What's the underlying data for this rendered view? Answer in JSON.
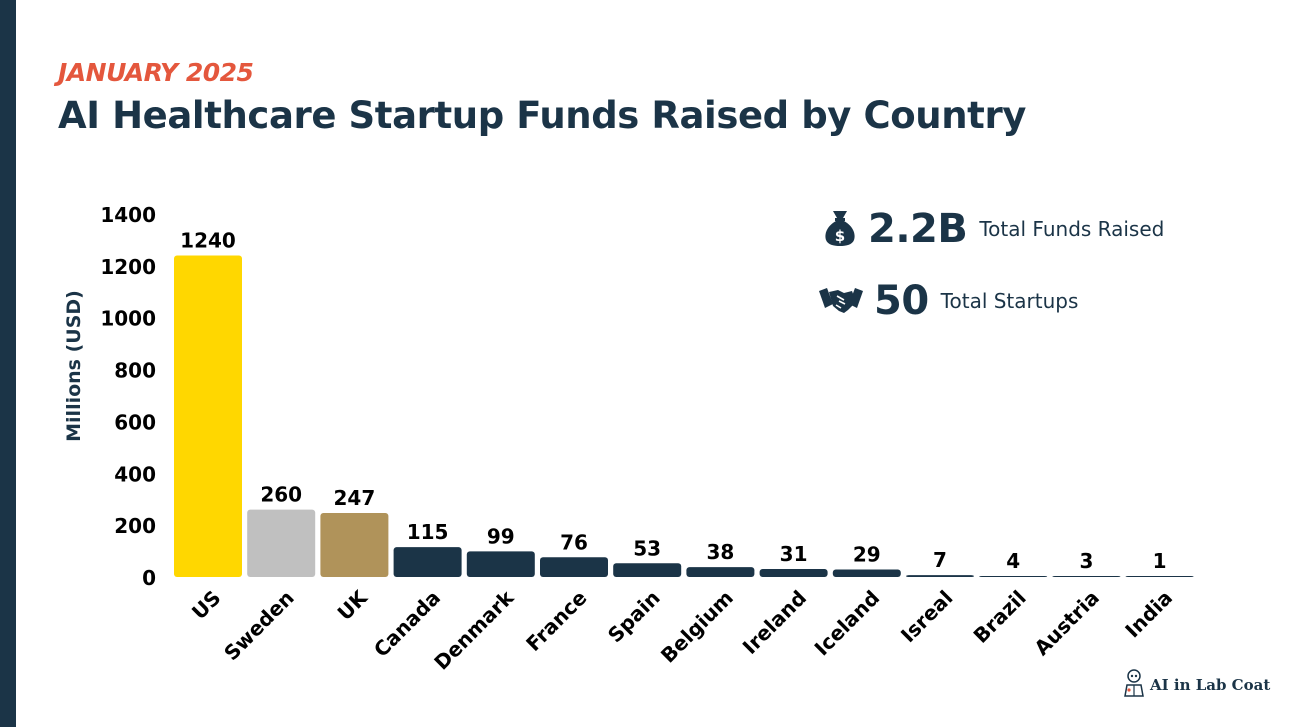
{
  "header": {
    "subtitle": "JANUARY 2025",
    "title": "AI Healthcare Startup Funds Raised by Country"
  },
  "stats": {
    "funds_value": "2.2B",
    "funds_label": "Total Funds Raised",
    "startups_value": "50",
    "startups_label": "Total Startups"
  },
  "icons": {
    "funds": "money-bag-icon",
    "startups": "handshake-icon",
    "brand": "robot-logo-icon"
  },
  "brand": {
    "name": "AI in Lab Coat"
  },
  "colors": {
    "navy": "#1b3447",
    "accent": "#e4573d",
    "gold": "#ffd700",
    "silver": "#c0c0c0",
    "bronze": "#b0935a"
  },
  "chart_data": {
    "type": "bar",
    "title": "AI Healthcare Startup Funds Raised by Country",
    "xlabel": "",
    "ylabel": "Millions (USD)",
    "ylim": [
      0,
      1400
    ],
    "yticks": [
      0,
      200,
      400,
      600,
      800,
      1000,
      1200,
      1400
    ],
    "categories": [
      "US",
      "Sweden",
      "UK",
      "Canada",
      "Denmark",
      "France",
      "Spain",
      "Belgium",
      "Ireland",
      "Iceland",
      "Isreal",
      "Brazil",
      "Austria",
      "India"
    ],
    "values": [
      1240,
      260,
      247,
      115,
      99,
      76,
      53,
      38,
      31,
      29,
      7,
      4,
      3,
      1
    ],
    "bar_colors": [
      "#ffd700",
      "#c0c0c0",
      "#b0935a",
      "#1b3447",
      "#1b3447",
      "#1b3447",
      "#1b3447",
      "#1b3447",
      "#1b3447",
      "#1b3447",
      "#1b3447",
      "#1b3447",
      "#1b3447",
      "#1b3447"
    ],
    "grid": false,
    "legend": "none"
  }
}
